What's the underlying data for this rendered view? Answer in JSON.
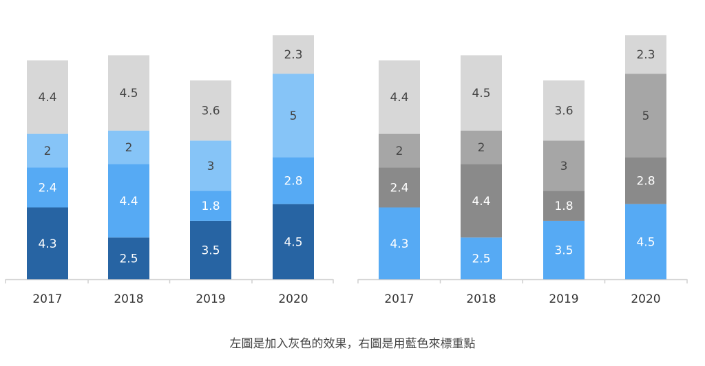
{
  "caption": "左圖是加入灰色的效果，右圖是用藍色來標重點",
  "chart_data": [
    {
      "type": "bar",
      "stacked": true,
      "title": "",
      "xlabel": "",
      "ylabel": "",
      "grid": false,
      "categories": [
        "2017",
        "2018",
        "2019",
        "2020"
      ],
      "series": [
        {
          "values": [
            4.3,
            2.5,
            3.5,
            4.5
          ],
          "color": "#2764a3",
          "label_color": "#ffffff"
        },
        {
          "values": [
            2.4,
            4.4,
            1.8,
            2.8
          ],
          "color": "#56aaf4",
          "label_color": "#ffffff"
        },
        {
          "values": [
            2,
            2,
            3,
            5
          ],
          "color": "#86c4f7",
          "label_color": "#444444"
        },
        {
          "values": [
            4.4,
            4.5,
            3.6,
            2.3
          ],
          "color": "#d7d7d7",
          "label_color": "#444444"
        }
      ]
    },
    {
      "type": "bar",
      "stacked": true,
      "title": "",
      "xlabel": "",
      "ylabel": "",
      "grid": false,
      "categories": [
        "2017",
        "2018",
        "2019",
        "2020"
      ],
      "series": [
        {
          "values": [
            4.3,
            2.5,
            3.5,
            4.5
          ],
          "color": "#56aaf4",
          "label_color": "#ffffff"
        },
        {
          "values": [
            2.4,
            4.4,
            1.8,
            2.8
          ],
          "color": "#8a8a8a",
          "label_color": "#ffffff"
        },
        {
          "values": [
            2,
            2,
            3,
            5
          ],
          "color": "#a6a6a6",
          "label_color": "#444444"
        },
        {
          "values": [
            4.4,
            4.5,
            3.6,
            2.3
          ],
          "color": "#d7d7d7",
          "label_color": "#444444"
        }
      ]
    }
  ]
}
